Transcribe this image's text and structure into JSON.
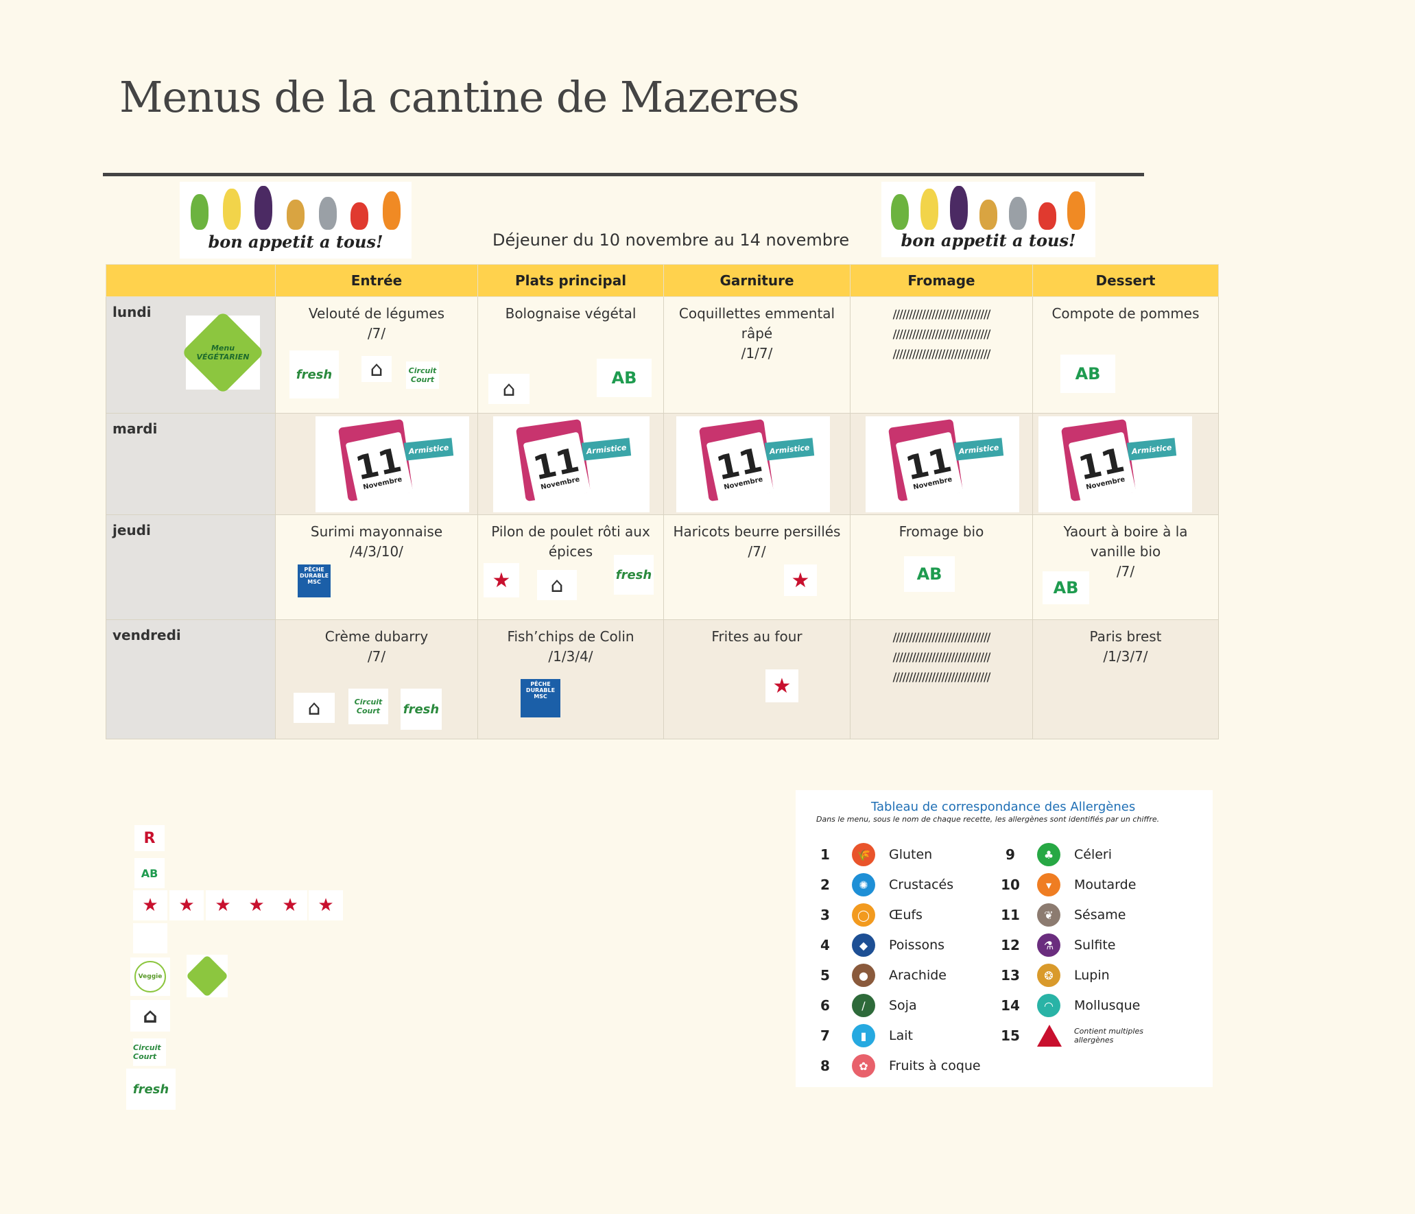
{
  "page": {
    "title": "Menus de la cantine de Mazeres",
    "subtitle": "Déjeuner du 10 novembre au 14 novembre"
  },
  "banner": {
    "text": "bon appetit a tous!"
  },
  "columns": [
    "Entrée",
    "Plats principal",
    "Garniture",
    "Fromage",
    "Dessert"
  ],
  "rows": [
    {
      "day": "lundi",
      "cells": [
        "Velouté de légumes\n/7/",
        "Bolognaise végétal",
        "Coquillettes emmental râpé\n/1/7/",
        "//////////////////////////////\n//////////////////////////////\n//////////////////////////////",
        "Compote de pommes"
      ]
    },
    {
      "day": "mardi",
      "cells": [
        "",
        "",
        "",
        "",
        ""
      ]
    },
    {
      "day": "jeudi",
      "cells": [
        "Surimi mayonnaise\n/4/3/10/",
        "Pilon de poulet rôti aux épices",
        "Haricots beurre persillés\n/7/",
        "Fromage bio",
        "Yaourt à boire à la vanille bio\n/7/"
      ]
    },
    {
      "day": "vendredi",
      "cells": [
        "Crème dubarry\n/7/",
        "Fish’chips de Colin\n/1/3/4/",
        "Frites au four",
        "//////////////////////////////\n//////////////////////////////\n//////////////////////////////",
        "Paris brest\n/1/3/7/"
      ]
    }
  ],
  "holiday": {
    "number": "11",
    "month": "Novembre",
    "label": "Armistice"
  },
  "logos": {
    "ab": "AB",
    "fresh": "fresh",
    "circuit_court": "Circuit Court",
    "msc": "PÊCHE DURABLE MSC",
    "menu_vege": "Menu VÉGÉTARIEN",
    "veggie": "Veggie"
  },
  "legend": {
    "title": "Tableau de correspondance des Allergènes",
    "description": "Dans le menu, sous le nom de chaque recette, les allergènes sont identifiés par un chiffre.",
    "items": [
      {
        "n": "1",
        "label": "Gluten",
        "color": "#e9542b"
      },
      {
        "n": "2",
        "label": "Crustacés",
        "color": "#1e8fd6"
      },
      {
        "n": "3",
        "label": "Œufs",
        "color": "#f29a1f"
      },
      {
        "n": "4",
        "label": "Poissons",
        "color": "#1d4f94"
      },
      {
        "n": "5",
        "label": "Arachide",
        "color": "#8a5a3c"
      },
      {
        "n": "6",
        "label": "Soja",
        "color": "#2e6a3a"
      },
      {
        "n": "7",
        "label": "Lait",
        "color": "#26a9e0"
      },
      {
        "n": "8",
        "label": "Fruits à coque",
        "color": "#e8616b"
      },
      {
        "n": "9",
        "label": "Céleri",
        "color": "#27a844"
      },
      {
        "n": "10",
        "label": "Moutarde",
        "color": "#ef7d22"
      },
      {
        "n": "11",
        "label": "Sésame",
        "color": "#8c7b70"
      },
      {
        "n": "12",
        "label": "Sulfite",
        "color": "#6a2d7e"
      },
      {
        "n": "13",
        "label": "Lupin",
        "color": "#d99a2b"
      },
      {
        "n": "14",
        "label": "Mollusque",
        "color": "#29b3a6"
      },
      {
        "n": "15",
        "label": "Contient multiples allergènes",
        "color": "#c8102e"
      }
    ]
  }
}
